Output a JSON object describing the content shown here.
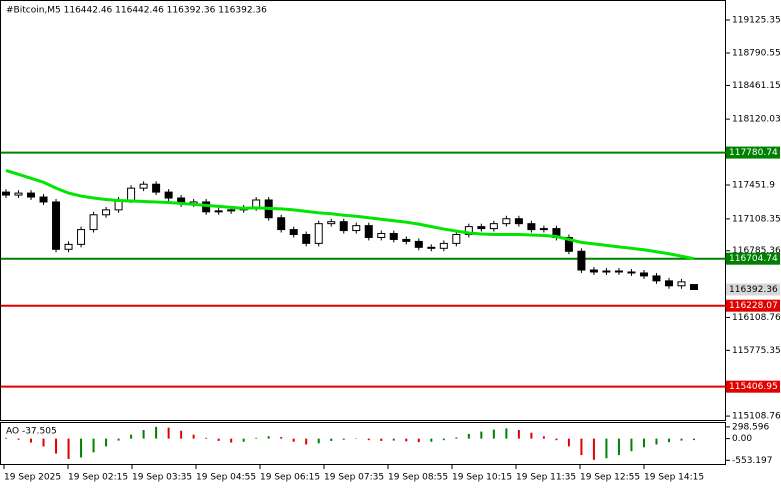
{
  "chart_data": [
    {
      "type": "candlestick",
      "title": "#Bitcoin,M5  116442.46 116442.46 116392.36 116392.36",
      "open": [
        117380,
        117350,
        117370,
        117330,
        117280,
        116800,
        116850,
        117000,
        117150,
        117200,
        117300,
        117420,
        117460,
        117380,
        117320,
        117260,
        117280,
        117180,
        117190,
        117200,
        117220,
        117300,
        117120,
        117000,
        116950,
        116860,
        117060,
        117080,
        116990,
        117040,
        116920,
        116960,
        116900,
        116880,
        116820,
        116810,
        116860,
        116950,
        117030,
        117010,
        117060,
        117110,
        117060,
        117000,
        117010,
        116920,
        116780,
        116590,
        116570,
        116580,
        116570,
        116560,
        116530,
        116480,
        116430,
        116442.46
      ],
      "high": [
        117410,
        117400,
        117400,
        117360,
        117310,
        116880,
        117030,
        117180,
        117230,
        117330,
        117450,
        117490,
        117490,
        117410,
        117350,
        117310,
        117310,
        117220,
        117230,
        117250,
        117330,
        117330,
        117150,
        117030,
        116980,
        117090,
        117110,
        117110,
        117070,
        117070,
        116990,
        116990,
        116930,
        116910,
        116850,
        116890,
        116980,
        117060,
        117060,
        117090,
        117140,
        117140,
        117090,
        117040,
        117040,
        116950,
        116810,
        116620,
        116610,
        116610,
        116600,
        116590,
        116560,
        116510,
        116500,
        116442.46
      ],
      "low": [
        117320,
        117320,
        117300,
        117250,
        116770,
        116770,
        116820,
        116970,
        117120,
        117170,
        117270,
        117390,
        117350,
        117290,
        117230,
        117230,
        117150,
        117150,
        117160,
        117170,
        117190,
        117090,
        116970,
        116920,
        116830,
        116830,
        117030,
        116960,
        116960,
        116890,
        116890,
        116870,
        116850,
        116790,
        116780,
        116780,
        116830,
        116920,
        116980,
        116980,
        117030,
        117030,
        116970,
        116970,
        116890,
        116750,
        116560,
        116540,
        116540,
        116540,
        116530,
        116500,
        116450,
        116400,
        116400,
        116392.36
      ],
      "close": [
        117350,
        117370,
        117330,
        117280,
        116800,
        116850,
        117000,
        117150,
        117200,
        117300,
        117420,
        117460,
        117380,
        117320,
        117260,
        117280,
        117180,
        117190,
        117200,
        117220,
        117300,
        117120,
        117000,
        116950,
        116860,
        117060,
        117080,
        116990,
        117040,
        116920,
        116960,
        116900,
        116880,
        116820,
        116810,
        116860,
        116950,
        117030,
        117010,
        117060,
        117110,
        117060,
        117000,
        117010,
        116920,
        116780,
        116590,
        116570,
        116580,
        116570,
        116560,
        116530,
        116480,
        116430,
        116470,
        116392.36
      ],
      "ma_values": [
        117600,
        117560,
        117520,
        117480,
        117420,
        117370,
        117340,
        117320,
        117305,
        117295,
        117290,
        117285,
        117280,
        117275,
        117265,
        117255,
        117245,
        117235,
        117225,
        117215,
        117220,
        117215,
        117210,
        117200,
        117185,
        117170,
        117160,
        117145,
        117135,
        117120,
        117105,
        117090,
        117075,
        117055,
        117030,
        117005,
        116985,
        116965,
        116955,
        116950,
        116950,
        116950,
        116945,
        116940,
        116930,
        116900,
        116870,
        116855,
        116840,
        116825,
        116810,
        116795,
        116775,
        116755,
        116730,
        116704.74
      ],
      "ma_color": "#00e600",
      "levels": [
        {
          "value": 117780.74,
          "color": "#008000"
        },
        {
          "value": 116704.74,
          "color": "#008000"
        },
        {
          "value": 116228.07,
          "color": "#e00000"
        },
        {
          "value": 115406.95,
          "color": "#e00000"
        }
      ],
      "current_price": 116392.36,
      "ylim": [
        115069,
        119328
      ],
      "yticks": [
        119125.35,
        118790.55,
        118461.15,
        118120.03,
        117451.9,
        117108.35,
        116785.36,
        116108.76,
        115775.35,
        115108.76
      ],
      "time_labels": [
        "19 Sep 2025",
        "19 Sep 02:15",
        "19 Sep 03:35",
        "19 Sep 04:55",
        "19 Sep 06:15",
        "19 Sep 07:35",
        "19 Sep 08:55",
        "19 Sep 10:15",
        "19 Sep 11:35",
        "19 Sep 12:55",
        "19 Sep 14:15"
      ]
    },
    {
      "type": "bar",
      "title": "AO -37.505",
      "values": [
        20,
        -30,
        -100,
        -200,
        -380,
        -520,
        -480,
        -350,
        -200,
        -50,
        100,
        220,
        300,
        280,
        200,
        100,
        20,
        -60,
        -100,
        -80,
        20,
        60,
        40,
        -80,
        -150,
        -120,
        -60,
        -30,
        -10,
        -40,
        -60,
        -50,
        -70,
        -90,
        -80,
        -40,
        30,
        120,
        180,
        230,
        260,
        220,
        150,
        60,
        -40,
        -200,
        -420,
        -540,
        -500,
        -420,
        -320,
        -220,
        -150,
        -90,
        -50,
        -37.505
      ],
      "up_color": "#008000",
      "down_color": "#e00000",
      "ylim": [
        -647,
        398
      ],
      "yticks": [
        298.596,
        {
          "value": 0,
          "label": "0.00"
        },
        -553.197
      ]
    }
  ]
}
